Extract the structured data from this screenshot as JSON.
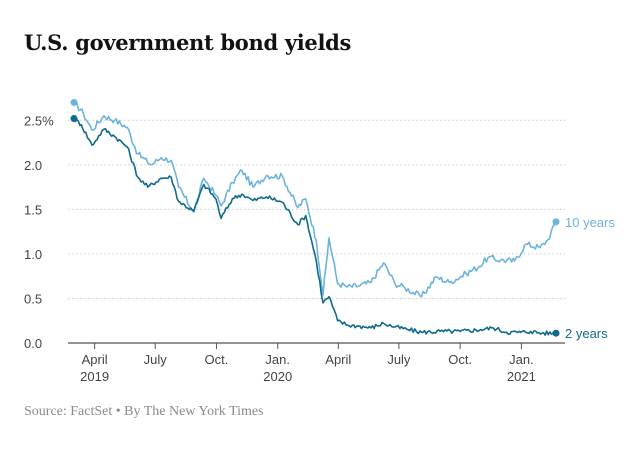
{
  "header": {
    "title": "U.S. government bond yields"
  },
  "footer": {
    "source": "Source: FactSet • By The New York Times"
  },
  "colors": {
    "ten_year": "#6cb3dc",
    "two_year": "#0f6a8c",
    "grid": "#c9c9c9",
    "axis": "#555555"
  },
  "chart_data": {
    "type": "line",
    "title": "U.S. government bond yields",
    "xlabel": "",
    "ylabel": "",
    "ylim": [
      0,
      2.75
    ],
    "grid": true,
    "legend": "inline-end-labels",
    "x_ticks": [
      {
        "month": "2019-04",
        "line1": "April",
        "line2": "2019"
      },
      {
        "month": "2019-07",
        "line1": "July",
        "line2": ""
      },
      {
        "month": "2019-10",
        "line1": "Oct.",
        "line2": ""
      },
      {
        "month": "2020-01",
        "line1": "Jan.",
        "line2": "2020"
      },
      {
        "month": "2020-04",
        "line1": "April",
        "line2": ""
      },
      {
        "month": "2020-07",
        "line1": "July",
        "line2": ""
      },
      {
        "month": "2020-10",
        "line1": "Oct.",
        "line2": ""
      },
      {
        "month": "2021-01",
        "line1": "Jan.",
        "line2": "2021"
      }
    ],
    "y_ticks": [
      {
        "value": 2.5,
        "label": "2.5%"
      },
      {
        "value": 2.0,
        "label": "2.0"
      },
      {
        "value": 1.5,
        "label": "1.5"
      },
      {
        "value": 1.0,
        "label": "1.0"
      },
      {
        "value": 0.5,
        "label": "0.5"
      },
      {
        "value": 0.0,
        "label": "0.0"
      }
    ],
    "series": [
      {
        "name": "10 years",
        "color": "#6cb3dc",
        "points": [
          [
            "2019-03-01",
            2.7
          ],
          [
            "2019-03-15",
            2.58
          ],
          [
            "2019-03-28",
            2.39
          ],
          [
            "2019-04-15",
            2.55
          ],
          [
            "2019-05-01",
            2.5
          ],
          [
            "2019-05-20",
            2.42
          ],
          [
            "2019-06-05",
            2.12
          ],
          [
            "2019-06-25",
            2.0
          ],
          [
            "2019-07-10",
            2.08
          ],
          [
            "2019-07-25",
            2.05
          ],
          [
            "2019-08-05",
            1.75
          ],
          [
            "2019-08-28",
            1.47
          ],
          [
            "2019-09-12",
            1.85
          ],
          [
            "2019-09-30",
            1.66
          ],
          [
            "2019-10-08",
            1.54
          ],
          [
            "2019-10-25",
            1.8
          ],
          [
            "2019-11-08",
            1.94
          ],
          [
            "2019-11-25",
            1.75
          ],
          [
            "2019-12-15",
            1.88
          ],
          [
            "2020-01-08",
            1.87
          ],
          [
            "2020-01-31",
            1.52
          ],
          [
            "2020-02-12",
            1.62
          ],
          [
            "2020-02-28",
            1.15
          ],
          [
            "2020-03-09",
            0.54
          ],
          [
            "2020-03-18",
            1.18
          ],
          [
            "2020-03-31",
            0.67
          ],
          [
            "2020-04-15",
            0.63
          ],
          [
            "2020-05-01",
            0.64
          ],
          [
            "2020-05-20",
            0.68
          ],
          [
            "2020-06-08",
            0.9
          ],
          [
            "2020-06-25",
            0.67
          ],
          [
            "2020-07-10",
            0.62
          ],
          [
            "2020-08-04",
            0.52
          ],
          [
            "2020-08-26",
            0.74
          ],
          [
            "2020-09-15",
            0.68
          ],
          [
            "2020-10-10",
            0.78
          ],
          [
            "2020-10-30",
            0.86
          ],
          [
            "2020-11-12",
            0.96
          ],
          [
            "2020-12-01",
            0.93
          ],
          [
            "2020-12-22",
            0.92
          ],
          [
            "2021-01-08",
            1.11
          ],
          [
            "2021-01-29",
            1.07
          ],
          [
            "2021-02-10",
            1.16
          ],
          [
            "2021-02-22",
            1.36
          ]
        ]
      },
      {
        "name": "2 years",
        "color": "#0f6a8c",
        "points": [
          [
            "2019-03-01",
            2.52
          ],
          [
            "2019-03-12",
            2.45
          ],
          [
            "2019-03-28",
            2.22
          ],
          [
            "2019-04-15",
            2.4
          ],
          [
            "2019-05-01",
            2.32
          ],
          [
            "2019-05-20",
            2.2
          ],
          [
            "2019-06-05",
            1.86
          ],
          [
            "2019-06-20",
            1.75
          ],
          [
            "2019-07-10",
            1.85
          ],
          [
            "2019-07-25",
            1.86
          ],
          [
            "2019-08-05",
            1.59
          ],
          [
            "2019-08-28",
            1.48
          ],
          [
            "2019-09-12",
            1.78
          ],
          [
            "2019-09-30",
            1.62
          ],
          [
            "2019-10-08",
            1.4
          ],
          [
            "2019-10-25",
            1.62
          ],
          [
            "2019-11-08",
            1.67
          ],
          [
            "2019-11-25",
            1.6
          ],
          [
            "2019-12-15",
            1.64
          ],
          [
            "2020-01-08",
            1.58
          ],
          [
            "2020-01-31",
            1.33
          ],
          [
            "2020-02-12",
            1.43
          ],
          [
            "2020-02-28",
            0.92
          ],
          [
            "2020-03-09",
            0.45
          ],
          [
            "2020-03-18",
            0.52
          ],
          [
            "2020-03-31",
            0.25
          ],
          [
            "2020-04-15",
            0.2
          ],
          [
            "2020-05-01",
            0.19
          ],
          [
            "2020-05-20",
            0.17
          ],
          [
            "2020-06-08",
            0.22
          ],
          [
            "2020-06-25",
            0.18
          ],
          [
            "2020-07-15",
            0.15
          ],
          [
            "2020-08-04",
            0.12
          ],
          [
            "2020-09-01",
            0.13
          ],
          [
            "2020-10-01",
            0.13
          ],
          [
            "2020-11-01",
            0.15
          ],
          [
            "2020-11-20",
            0.17
          ],
          [
            "2020-12-10",
            0.12
          ],
          [
            "2020-12-31",
            0.12
          ],
          [
            "2021-01-15",
            0.13
          ],
          [
            "2021-02-01",
            0.11
          ],
          [
            "2021-02-22",
            0.11
          ]
        ]
      }
    ]
  }
}
